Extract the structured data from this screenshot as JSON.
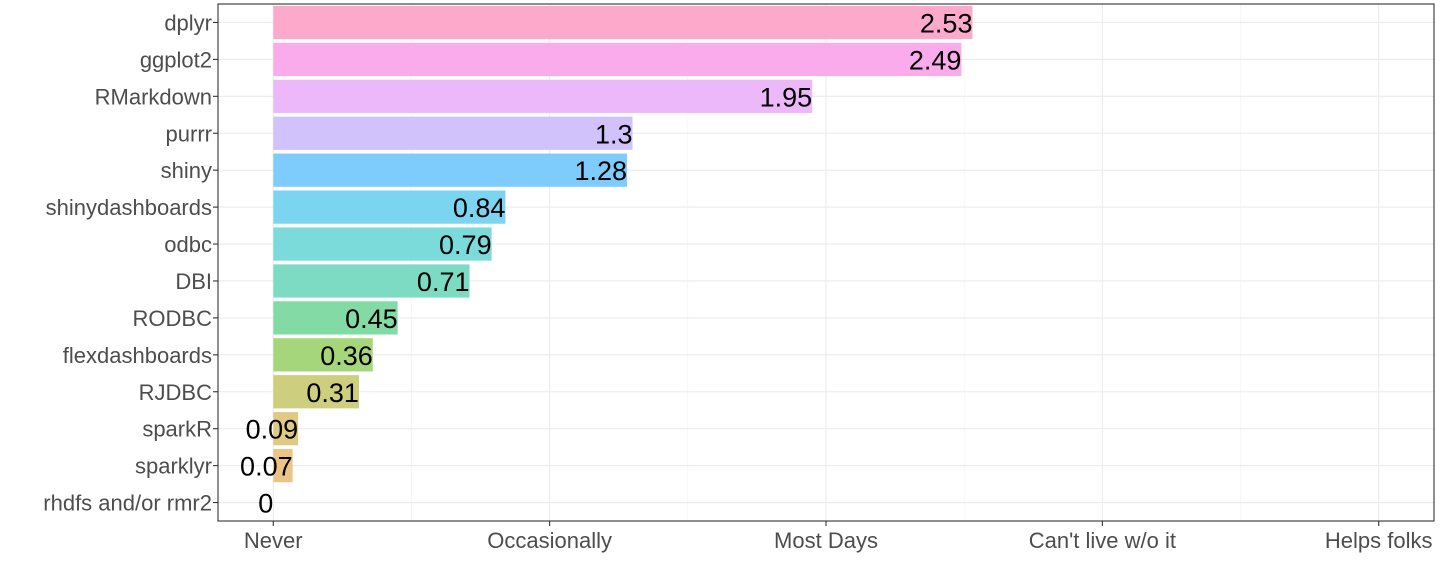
{
  "chart_data": {
    "type": "bar",
    "orientation": "horizontal",
    "title": "",
    "xlabel": "",
    "ylabel": "",
    "categories": [
      "dplyr",
      "ggplot2",
      "RMarkdown",
      "purrr",
      "shiny",
      "shinydashboards",
      "odbc",
      "DBI",
      "RODBC",
      "flexdashboards",
      "RJDBC",
      "sparkR",
      "sparklyr",
      "rhdfs and/or rmr2"
    ],
    "values": [
      2.53,
      2.49,
      1.95,
      1.3,
      1.28,
      0.84,
      0.79,
      0.71,
      0.45,
      0.36,
      0.31,
      0.09,
      0.07,
      0
    ],
    "data_labels": [
      "2.53",
      "2.49",
      "1.95",
      "1.3",
      "1.28",
      "0.84",
      "0.79",
      "0.71",
      "0.45",
      "0.36",
      "0.31",
      "0.09",
      "0.07",
      "0"
    ],
    "colors": [
      "#F8766D",
      "#F564E3",
      "#DB72FB",
      "#A58AFF",
      "#00A9FF",
      "#00B8E7",
      "#00C0B8",
      "#00BE9C",
      "#00C089",
      "#53B400",
      "#A3A500",
      "#C49A00",
      "#E38900",
      "#F8766D"
    ],
    "bar_colors_rendered": [
      "#FBAACC",
      "#FAABEC",
      "#ECB8F9",
      "#D1C2FB",
      "#7ECCFC",
      "#7BD5F0",
      "#7BDBDB",
      "#7CDBC2",
      "#82DBA4",
      "#A6D67B",
      "#CDCE7E",
      "#E0C983",
      "#ECC487",
      "#F7B7B0"
    ],
    "x_ticks": [
      {
        "value": 0,
        "label": "Never"
      },
      {
        "value": 1,
        "label": "Occasionally"
      },
      {
        "value": 2,
        "label": "Most Days"
      },
      {
        "value": 3,
        "label": "Can't live w/o it"
      },
      {
        "value": 4,
        "label": "Helps folks"
      }
    ],
    "xlim": [
      -0.2,
      4.2
    ],
    "grid": true,
    "legend": "none"
  }
}
